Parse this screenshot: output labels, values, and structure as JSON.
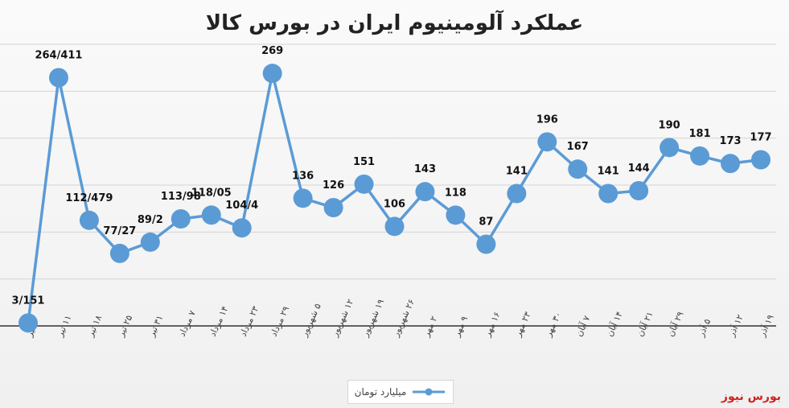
{
  "chart_data": {
    "type": "line",
    "title": "عملکرد آلومینیوم ایران در بورس کالا",
    "categories": [
      "۴ تیر",
      "۱۱ تیر",
      "۱۸ تیر",
      "۲۵ تیر",
      "۳۱ تیر",
      "۷ مرداد",
      "۱۴ مرداد",
      "۲۳ مرداد",
      "۲۹ مرداد",
      "۵ شهریور",
      "۱۲ شهریور",
      "۱۹ شهریور",
      "۲۶ شهریور",
      "۲ مهر",
      "۹ مهر",
      "۱۶ مهر",
      "۲۳ مهر",
      "۳۰ مهر",
      "۷ آبان",
      "۱۴ آبان",
      "۲۱ آبان",
      "۲۹ آبان",
      "۵ آذر",
      "۱۲ آذر",
      "۱۹ آذر"
    ],
    "series": [
      {
        "name": "میلیارد تومان",
        "values": [
          3.151,
          264.411,
          112.479,
          77.27,
          89.2,
          113.98,
          118.05,
          104.4,
          269,
          136,
          126,
          151,
          106,
          143,
          118,
          87,
          141,
          196,
          167,
          141,
          144,
          190,
          181,
          173,
          177
        ],
        "labels": [
          "3/151",
          "264/411",
          "112/479",
          "77/27",
          "89/2",
          "113/98",
          "118/05",
          "104/4",
          "269",
          "136",
          "126",
          "151",
          "106",
          "143",
          "118",
          "87",
          "141",
          "196",
          "167",
          "141",
          "144",
          "190",
          "181",
          "173",
          "177"
        ]
      }
    ],
    "ylim": [
      0,
      300
    ],
    "grid": true,
    "legend": "bottom",
    "colors": {
      "line": "#5b9bd5",
      "marker": "#5b9bd5"
    }
  },
  "brand": "بورس نیوز"
}
